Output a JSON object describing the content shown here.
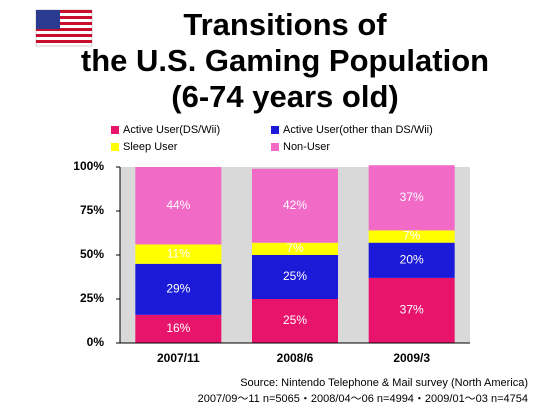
{
  "chart_data": {
    "type": "stacked-bar",
    "title": [
      "Transitions of",
      "the U.S. Gaming Population",
      "(6-74 years old)"
    ],
    "categories": [
      "2007/11",
      "2008/6",
      "2009/3"
    ],
    "series": [
      {
        "name": "Active User(DS/Wii)",
        "color": "#e8146c",
        "values": [
          16,
          25,
          37
        ],
        "value_labels": [
          "16%",
          "25%",
          "37%"
        ]
      },
      {
        "name": "Active User(other than DS/Wii)",
        "color": "#1a1ad8",
        "values": [
          29,
          25,
          20
        ],
        "value_labels": [
          "29%",
          "25%",
          "20%"
        ]
      },
      {
        "name": "Sleep User",
        "color": "#ffff00",
        "values": [
          11,
          7,
          7
        ],
        "value_labels": [
          "11%",
          "7%",
          "7%"
        ]
      },
      {
        "name": "Non-User",
        "color": "#f06ac6",
        "values": [
          44,
          42,
          37
        ],
        "value_labels": [
          "44%",
          "42%",
          "37%"
        ]
      }
    ],
    "ylim": [
      0,
      100
    ],
    "yticks": [
      {
        "value": 0,
        "label": "0%"
      },
      {
        "value": 25,
        "label": "25%"
      },
      {
        "value": 50,
        "label": "50%"
      },
      {
        "value": 75,
        "label": "75%"
      },
      {
        "value": 100,
        "label": "100%"
      }
    ],
    "source": [
      "Source: Nintendo Telephone & Mail survey (North America)",
      "2007/09～11 n=5065・2008/04～06 n=4994・2009/01～03 n=4754"
    ]
  }
}
